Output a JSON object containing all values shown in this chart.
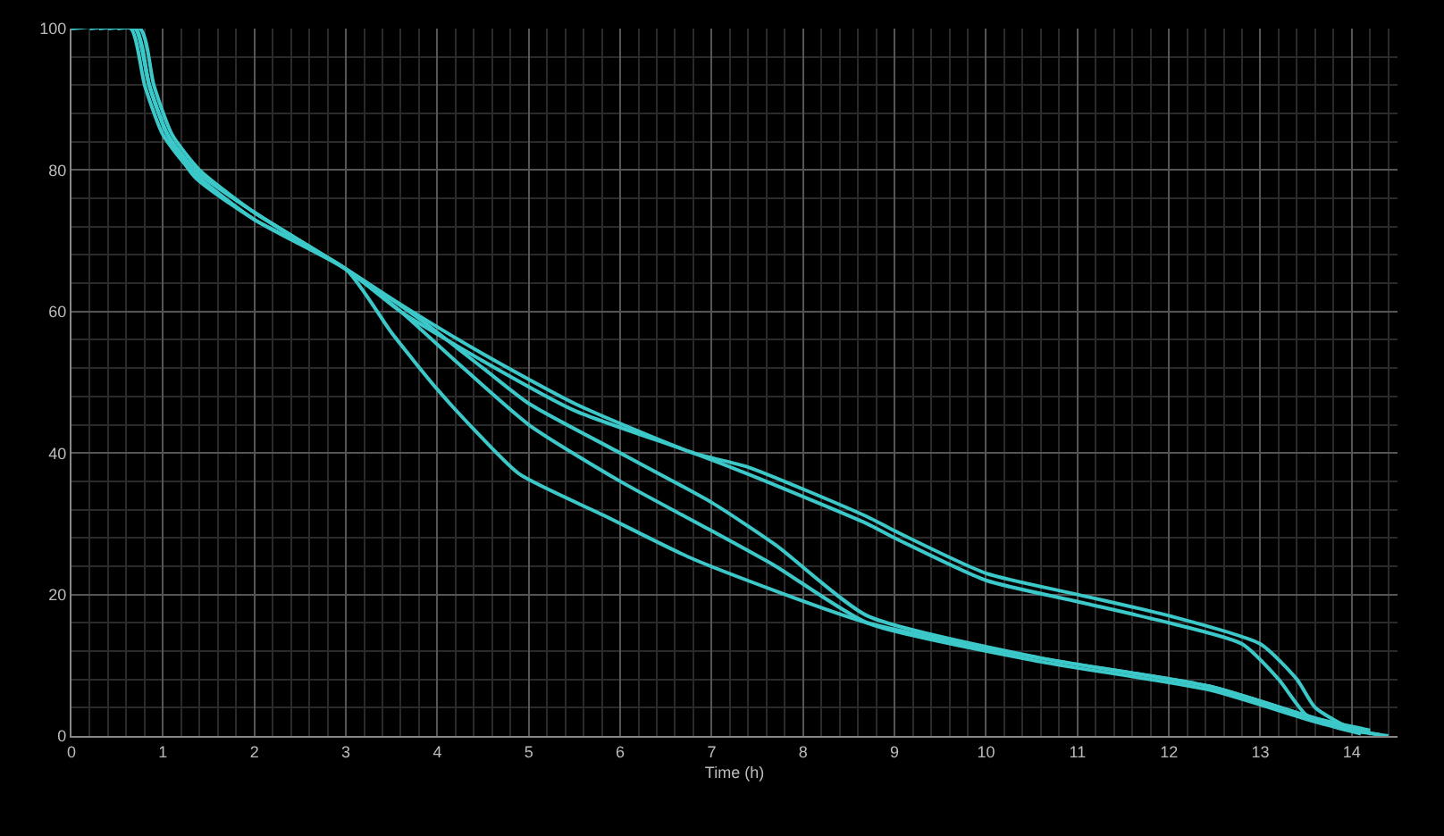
{
  "chart_data": {
    "type": "line",
    "xlabel": "Time (h)",
    "xlim": [
      0,
      14.5
    ],
    "xticks": [
      0,
      1,
      2,
      3,
      4,
      5,
      6,
      7,
      8,
      9,
      10,
      11,
      12,
      13,
      14
    ],
    "ylim": [
      0,
      100
    ],
    "yticks": [
      0,
      20,
      40,
      60,
      80,
      100
    ],
    "grid": true,
    "marker": "none",
    "line_style": "solid",
    "series": [
      {
        "color": "#3cc8c8",
        "x": [
          0,
          0.75,
          0.9,
          1.1,
          1.4,
          2,
          3,
          3.6,
          4.5,
          5.5,
          6.8,
          7.4,
          8.7,
          9,
          10,
          11,
          12,
          13,
          13.4,
          13.6,
          14,
          14.4
        ],
        "values": [
          100,
          100,
          92,
          85,
          80,
          74,
          66,
          61,
          54,
          47,
          40,
          38,
          31,
          29,
          23,
          20,
          17,
          13,
          8,
          4,
          1,
          0
        ]
      },
      {
        "color": "#3cc8c8",
        "x": [
          0.3,
          0.65,
          0.8,
          1,
          1.3,
          2,
          3,
          3.6,
          4.5,
          5.5,
          6.8,
          7.4,
          8.7,
          9,
          10,
          11,
          12,
          12.8,
          13.2,
          13.5,
          13.9,
          14.3
        ],
        "values": [
          100,
          100,
          92,
          85,
          80,
          73,
          66,
          60,
          53,
          46,
          40,
          37,
          30,
          28,
          22,
          19,
          16,
          13,
          8,
          3,
          1,
          0.2
        ]
      },
      {
        "color": "#3cc8c8",
        "x": [
          0.4,
          0.7,
          0.85,
          1.05,
          1.35,
          2,
          3,
          3.8,
          4.5,
          5,
          6,
          7,
          7.7,
          8.7,
          10.6,
          12.45,
          13.6,
          14.2
        ],
        "values": [
          100,
          100,
          92,
          85,
          80,
          74,
          66,
          59,
          52,
          47,
          40,
          33,
          27,
          17,
          11,
          7,
          2.5,
          0.5
        ]
      },
      {
        "color": "#3cc8c8",
        "x": [
          0.5,
          0.7,
          0.85,
          1.05,
          1.35,
          2,
          3,
          3.6,
          4.2,
          5,
          6,
          7,
          7.7,
          8.7,
          10.6,
          12.45,
          13.6,
          14.1
        ],
        "values": [
          100,
          100,
          92,
          85,
          80,
          74,
          66,
          60,
          53,
          44,
          36,
          29,
          24,
          16,
          10.5,
          6.5,
          2,
          0.3
        ]
      },
      {
        "color": "#3cc8c8",
        "x": [
          0.2,
          0.7,
          0.85,
          1.05,
          1.35,
          2,
          3,
          3.5,
          4,
          4.5,
          4.9,
          5.85,
          6.8,
          8.7,
          10.6,
          12.45,
          13.6,
          14.2
        ],
        "values": [
          100,
          100,
          92,
          85,
          79,
          73,
          66,
          57,
          49,
          42,
          37,
          31,
          25,
          16,
          11,
          7,
          2.5,
          0.8
        ]
      }
    ]
  }
}
